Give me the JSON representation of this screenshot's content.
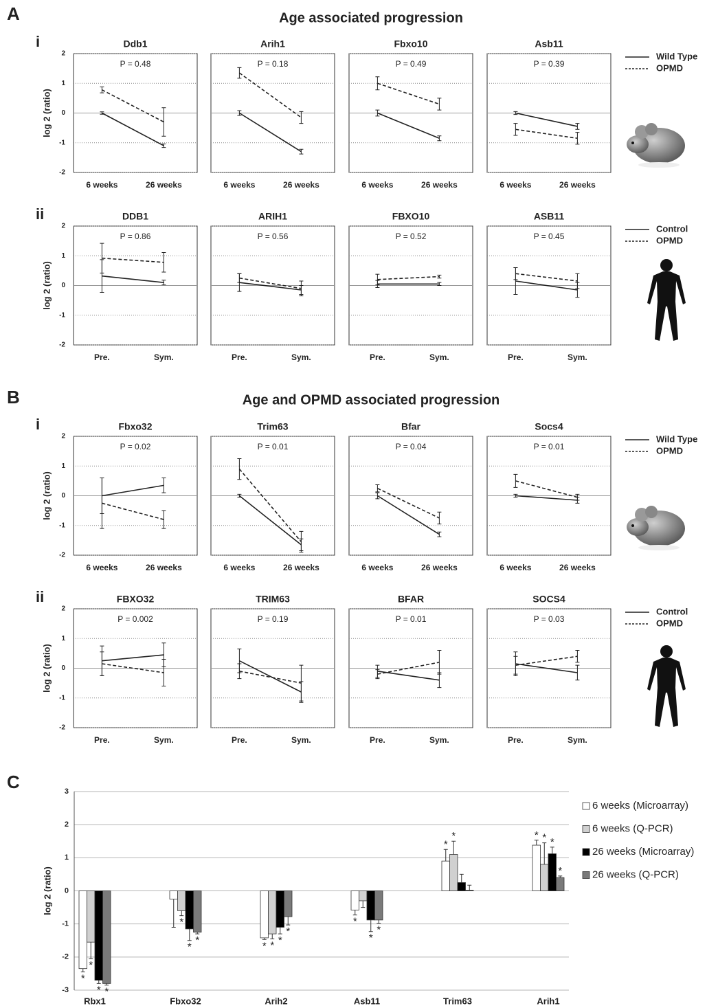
{
  "panels": [
    {
      "letter": "A",
      "title": "Age associated progression",
      "rows": [
        {
          "label": "i",
          "legend": [
            {
              "name": "Wild Type",
              "dashed": false
            },
            {
              "name": "OPMD",
              "dashed": true
            }
          ]
        },
        {
          "label": "ii",
          "legend": [
            {
              "name": "Control",
              "dashed": false
            },
            {
              "name": "OPMD",
              "dashed": true
            }
          ]
        }
      ]
    },
    {
      "letter": "B",
      "title": "Age and OPMD associated progression",
      "rows": [
        {
          "label": "i",
          "legend": [
            {
              "name": "Wild Type",
              "dashed": false
            },
            {
              "name": "OPMD",
              "dashed": true
            }
          ]
        },
        {
          "label": "ii",
          "legend": [
            {
              "name": "Control",
              "dashed": false
            },
            {
              "name": "OPMD",
              "dashed": true
            }
          ]
        }
      ]
    },
    {
      "letter": "C"
    }
  ],
  "chart_data": [
    {
      "type": "line",
      "title": "Ddb1",
      "annotation": "P = 0.48",
      "ylabel": "log 2 (ratio)",
      "tick_labels": true,
      "categories": [
        "6 weeks",
        "26 weeks"
      ],
      "ylim": [
        -2,
        2
      ],
      "yticks": [
        -2,
        -1,
        0,
        1,
        2
      ],
      "series": [
        {
          "dashed": false,
          "values": [
            0,
            -1.1
          ],
          "errors": [
            0.04,
            0.06
          ]
        },
        {
          "dashed": true,
          "values": [
            0.78,
            -0.3
          ],
          "errors": [
            0.1,
            0.48
          ]
        }
      ]
    },
    {
      "type": "line",
      "title": "Arih1",
      "annotation": "P = 0.18",
      "tick_labels": false,
      "categories": [
        "6 weeks",
        "26 weeks"
      ],
      "ylim": [
        -2,
        2
      ],
      "yticks": [
        -2,
        -1,
        0,
        1,
        2
      ],
      "series": [
        {
          "dashed": false,
          "values": [
            0,
            -1.3
          ],
          "errors": [
            0.08,
            0.08
          ]
        },
        {
          "dashed": true,
          "values": [
            1.35,
            -0.15
          ],
          "errors": [
            0.18,
            0.2
          ]
        }
      ]
    },
    {
      "type": "line",
      "title": "Fbxo10",
      "annotation": "P = 0.49",
      "tick_labels": false,
      "categories": [
        "6 weeks",
        "26 weeks"
      ],
      "ylim": [
        -2,
        2
      ],
      "yticks": [
        -2,
        -1,
        0,
        1,
        2
      ],
      "series": [
        {
          "dashed": false,
          "values": [
            0,
            -0.85
          ],
          "errors": [
            0.1,
            0.08
          ]
        },
        {
          "dashed": true,
          "values": [
            1.0,
            0.3
          ],
          "errors": [
            0.22,
            0.2
          ]
        }
      ]
    },
    {
      "type": "line",
      "title": "Asb11",
      "annotation": "P = 0.39",
      "tick_labels": false,
      "categories": [
        "6 weeks",
        "26 weeks"
      ],
      "ylim": [
        -2,
        2
      ],
      "yticks": [
        -2,
        -1,
        0,
        1,
        2
      ],
      "series": [
        {
          "dashed": false,
          "values": [
            0,
            -0.45
          ],
          "errors": [
            0.05,
            0.1
          ]
        },
        {
          "dashed": true,
          "values": [
            -0.55,
            -0.85
          ],
          "errors": [
            0.2,
            0.2
          ]
        }
      ]
    },
    {
      "type": "line",
      "title": "DDB1",
      "annotation": "P = 0.86",
      "ylabel": "log 2 (ratio)",
      "tick_labels": true,
      "categories": [
        "Pre.",
        "Sym."
      ],
      "ylim": [
        -2,
        2
      ],
      "yticks": [
        -2,
        -1,
        0,
        1,
        2
      ],
      "series": [
        {
          "dashed": false,
          "values": [
            0.32,
            0.1
          ],
          "errors": [
            0.55,
            0.08
          ]
        },
        {
          "dashed": true,
          "values": [
            0.92,
            0.78
          ],
          "errors": [
            0.5,
            0.33
          ]
        }
      ]
    },
    {
      "type": "line",
      "title": "ARIH1",
      "annotation": "P = 0.56",
      "tick_labels": false,
      "categories": [
        "Pre.",
        "Sym."
      ],
      "ylim": [
        -2,
        2
      ],
      "yticks": [
        -2,
        -1,
        0,
        1,
        2
      ],
      "series": [
        {
          "dashed": false,
          "values": [
            0.1,
            -0.15
          ],
          "errors": [
            0.3,
            0.15
          ]
        },
        {
          "dashed": true,
          "values": [
            0.25,
            -0.1
          ],
          "errors": [
            0.15,
            0.25
          ]
        }
      ]
    },
    {
      "type": "line",
      "title": "FBXO10",
      "annotation": "P = 0.52",
      "tick_labels": false,
      "categories": [
        "Pre.",
        "Sym."
      ],
      "ylim": [
        -2,
        2
      ],
      "yticks": [
        -2,
        -1,
        0,
        1,
        2
      ],
      "series": [
        {
          "dashed": false,
          "values": [
            0.05,
            0.05
          ],
          "errors": [
            0.12,
            0.05
          ]
        },
        {
          "dashed": true,
          "values": [
            0.2,
            0.3
          ],
          "errors": [
            0.18,
            0.05
          ]
        }
      ]
    },
    {
      "type": "line",
      "title": "ASB11",
      "annotation": "P = 0.45",
      "tick_labels": false,
      "categories": [
        "Pre.",
        "Sym."
      ],
      "ylim": [
        -2,
        2
      ],
      "yticks": [
        -2,
        -1,
        0,
        1,
        2
      ],
      "series": [
        {
          "dashed": false,
          "values": [
            0.15,
            -0.15
          ],
          "errors": [
            0.45,
            0.25
          ]
        },
        {
          "dashed": true,
          "values": [
            0.4,
            0.15
          ],
          "errors": [
            0.2,
            0.25
          ]
        }
      ]
    },
    {
      "type": "line",
      "title": "Fbxo32",
      "annotation": "P = 0.02",
      "ylabel": "log 2 (ratio)",
      "tick_labels": true,
      "categories": [
        "6 weeks",
        "26 weeks"
      ],
      "ylim": [
        -2,
        2
      ],
      "yticks": [
        -2,
        -1,
        0,
        1,
        2
      ],
      "series": [
        {
          "dashed": false,
          "values": [
            0,
            0.35
          ],
          "errors": [
            0.6,
            0.25
          ]
        },
        {
          "dashed": true,
          "values": [
            -0.25,
            -0.8
          ],
          "errors": [
            0.85,
            0.3
          ]
        }
      ]
    },
    {
      "type": "line",
      "title": "Trim63",
      "annotation": "P = 0.01",
      "tick_labels": false,
      "categories": [
        "6 weeks",
        "26 weeks"
      ],
      "ylim": [
        -2,
        2
      ],
      "yticks": [
        -2,
        -1,
        0,
        1,
        2
      ],
      "series": [
        {
          "dashed": false,
          "values": [
            0,
            -1.65
          ],
          "errors": [
            0.05,
            0.2
          ]
        },
        {
          "dashed": true,
          "values": [
            0.9,
            -1.55
          ],
          "errors": [
            0.35,
            0.35
          ]
        }
      ]
    },
    {
      "type": "line",
      "title": "Bfar",
      "annotation": "P = 0.04",
      "tick_labels": false,
      "categories": [
        "6 weeks",
        "26 weeks"
      ],
      "ylim": [
        -2,
        2
      ],
      "yticks": [
        -2,
        -1,
        0,
        1,
        2
      ],
      "series": [
        {
          "dashed": false,
          "values": [
            0,
            -1.3
          ],
          "errors": [
            0.1,
            0.08
          ]
        },
        {
          "dashed": true,
          "values": [
            0.25,
            -0.75
          ],
          "errors": [
            0.12,
            0.2
          ]
        }
      ]
    },
    {
      "type": "line",
      "title": "Socs4",
      "annotation": "P = 0.01",
      "tick_labels": false,
      "categories": [
        "6 weeks",
        "26 weeks"
      ],
      "ylim": [
        -2,
        2
      ],
      "yticks": [
        -2,
        -1,
        0,
        1,
        2
      ],
      "series": [
        {
          "dashed": false,
          "values": [
            0,
            -0.15
          ],
          "errors": [
            0.05,
            0.1
          ]
        },
        {
          "dashed": true,
          "values": [
            0.5,
            -0.05
          ],
          "errors": [
            0.22,
            0.1
          ]
        }
      ]
    },
    {
      "type": "line",
      "title": "FBXO32",
      "annotation": "P = 0.002",
      "ylabel": "log 2 (ratio)",
      "tick_labels": true,
      "categories": [
        "Pre.",
        "Sym."
      ],
      "ylim": [
        -2,
        2
      ],
      "yticks": [
        -2,
        -1,
        0,
        1,
        2
      ],
      "series": [
        {
          "dashed": false,
          "values": [
            0.25,
            0.45
          ],
          "errors": [
            0.5,
            0.4
          ]
        },
        {
          "dashed": true,
          "values": [
            0.15,
            -0.15
          ],
          "errors": [
            0.4,
            0.45
          ]
        }
      ]
    },
    {
      "type": "line",
      "title": "TRIM63",
      "annotation": "P = 0.19",
      "tick_labels": false,
      "categories": [
        "Pre.",
        "Sym."
      ],
      "ylim": [
        -2,
        2
      ],
      "yticks": [
        -2,
        -1,
        0,
        1,
        2
      ],
      "series": [
        {
          "dashed": false,
          "values": [
            0.25,
            -0.8
          ],
          "errors": [
            0.4,
            0.35
          ]
        },
        {
          "dashed": true,
          "values": [
            -0.1,
            -0.5
          ],
          "errors": [
            0.25,
            0.6
          ]
        }
      ]
    },
    {
      "type": "line",
      "title": "BFAR",
      "annotation": "P = 0.01",
      "tick_labels": false,
      "categories": [
        "Pre.",
        "Sym."
      ],
      "ylim": [
        -2,
        2
      ],
      "yticks": [
        -2,
        -1,
        0,
        1,
        2
      ],
      "series": [
        {
          "dashed": false,
          "values": [
            -0.1,
            -0.4
          ],
          "errors": [
            0.2,
            0.25
          ]
        },
        {
          "dashed": true,
          "values": [
            -0.2,
            0.2
          ],
          "errors": [
            0.15,
            0.4
          ]
        }
      ]
    },
    {
      "type": "line",
      "title": "SOCS4",
      "annotation": "P = 0.03",
      "tick_labels": false,
      "categories": [
        "Pre.",
        "Sym."
      ],
      "ylim": [
        -2,
        2
      ],
      "yticks": [
        -2,
        -1,
        0,
        1,
        2
      ],
      "series": [
        {
          "dashed": false,
          "values": [
            0.15,
            -0.15
          ],
          "errors": [
            0.4,
            0.25
          ]
        },
        {
          "dashed": true,
          "values": [
            0.1,
            0.4
          ],
          "errors": [
            0.3,
            0.2
          ]
        }
      ]
    },
    {
      "type": "bar",
      "ylabel": "log 2 (ratio)",
      "categories": [
        "Rbx1",
        "Fbxo32",
        "Arih2",
        "Asb11",
        "Trim63",
        "Arih1"
      ],
      "ylim": [
        -3,
        3
      ],
      "yticks": [
        -3,
        -2,
        -1,
        0,
        1,
        2,
        3
      ],
      "grid": true,
      "series": [
        {
          "name": "6 weeks (Microarray)",
          "color": "#ffffff",
          "values": [
            -2.35,
            -0.25,
            -1.42,
            -0.58,
            0.9,
            1.38
          ],
          "errors": [
            0.1,
            0.85,
            0.05,
            0.15,
            0.35,
            0.15
          ],
          "significance": [
            "*",
            null,
            "*",
            "*",
            "*",
            "*"
          ]
        },
        {
          "name": "6 weeks (Q-PCR)",
          "color": "#d0d0d0",
          "values": [
            -1.55,
            -0.6,
            -1.3,
            -0.3,
            1.1,
            0.8
          ],
          "errors": [
            0.5,
            0.15,
            0.15,
            0.2,
            0.4,
            0.65
          ],
          "significance": [
            "*",
            "*",
            "*",
            null,
            "*",
            "*"
          ]
        },
        {
          "name": "26 weeks (Microarray)",
          "color": "#000000",
          "values": [
            -2.7,
            -1.15,
            -1.1,
            -0.88,
            0.25,
            1.12
          ],
          "errors": [
            0.1,
            0.35,
            0.2,
            0.35,
            0.25,
            0.2
          ],
          "significance": [
            "*",
            "*",
            "*",
            "*",
            null,
            "*"
          ]
        },
        {
          "name": "26 weeks (Q-PCR)",
          "color": "#7a7a7a",
          "values": [
            -2.8,
            -1.25,
            -0.78,
            -0.88,
            0.02,
            0.4
          ],
          "errors": [
            0.05,
            0.05,
            0.25,
            0.1,
            0.15,
            0.05
          ],
          "significance": [
            "*",
            "*",
            "*",
            "*",
            null,
            "*"
          ]
        }
      ]
    }
  ]
}
